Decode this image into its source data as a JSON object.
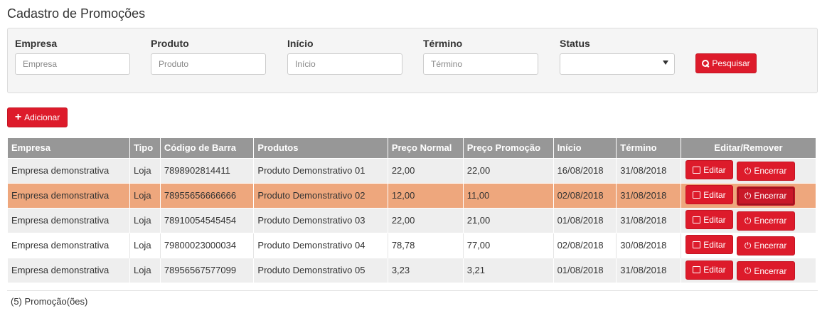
{
  "page": {
    "title": "Cadastro de Promoções"
  },
  "filters": {
    "empresa": {
      "label": "Empresa",
      "placeholder": "Empresa",
      "value": ""
    },
    "produto": {
      "label": "Produto",
      "placeholder": "Produto",
      "value": ""
    },
    "inicio": {
      "label": "Início",
      "placeholder": "Início",
      "value": ""
    },
    "termino": {
      "label": "Término",
      "placeholder": "Término",
      "value": ""
    },
    "status": {
      "label": "Status",
      "value": ""
    },
    "search_label": "Pesquisar"
  },
  "actions": {
    "add_label": "Adicionar"
  },
  "table": {
    "headers": [
      "Empresa",
      "Tipo",
      "Código de Barra",
      "Produtos",
      "Preço Normal",
      "Preço Promoção",
      "Início",
      "Término",
      "Editar/Remover"
    ],
    "edit_label": "Editar",
    "end_label": "Encerrar",
    "rows": [
      {
        "empresa": "Empresa demonstrativa",
        "tipo": "Loja",
        "codigo": "7898902814411",
        "produto": "Produto Demonstrativo 01",
        "preco_normal": "22,00",
        "preco_promocao": "22,00",
        "inicio": "16/08/2018",
        "termino": "31/08/2018"
      },
      {
        "empresa": "Empresa demonstrativa",
        "tipo": "Loja",
        "codigo": "78955656666666",
        "produto": "Produto Demonstrativo 02",
        "preco_normal": "12,00",
        "preco_promocao": "11,00",
        "inicio": "02/08/2018",
        "termino": "31/08/2018"
      },
      {
        "empresa": "Empresa demonstrativa",
        "tipo": "Loja",
        "codigo": "78910054545454",
        "produto": "Produto Demonstrativo 03",
        "preco_normal": "22,00",
        "preco_promocao": "21,00",
        "inicio": "01/08/2018",
        "termino": "31/08/2018"
      },
      {
        "empresa": "Empresa demonstrativa",
        "tipo": "Loja",
        "codigo": "79800023000034",
        "produto": "Produto Demonstrativo 04",
        "preco_normal": "78,78",
        "preco_promocao": "77,00",
        "inicio": "02/08/2018",
        "termino": "30/08/2018"
      },
      {
        "empresa": "Empresa demonstrativa",
        "tipo": "Loja",
        "codigo": "78956567577099",
        "produto": "Produto Demonstrativo 05",
        "preco_normal": "3,23",
        "preco_promocao": "3,21",
        "inicio": "01/08/2018",
        "termino": "31/08/2018"
      }
    ]
  },
  "footer": {
    "count_text": "(5) Promoção(ões)"
  },
  "colors": {
    "accent": "#dd1b2b",
    "header_bg": "#979797",
    "highlight_row": "#eea77d",
    "row_stripe": "#eeeeee"
  },
  "icons": {
    "search": "search-icon",
    "add": "plus-icon",
    "edit": "edit-icon",
    "end": "power-icon",
    "select": "chevron-down-icon"
  }
}
